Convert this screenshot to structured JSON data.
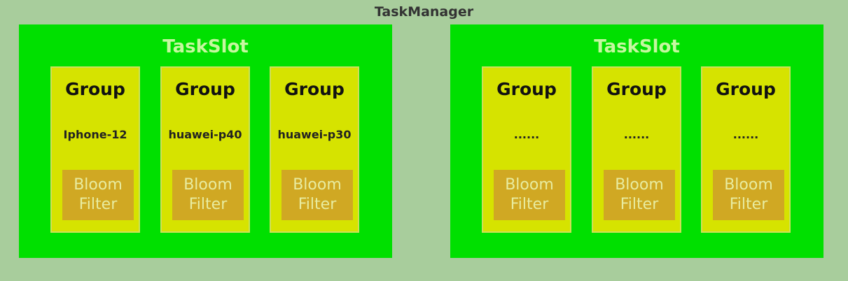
{
  "task_manager": {
    "title": "TaskManager"
  },
  "slots": [
    {
      "title": "TaskSlot",
      "groups": [
        {
          "title": "Group",
          "item": "Iphone-12",
          "filter": "Bloom\nFilter"
        },
        {
          "title": "Group",
          "item": "huawei-p40",
          "filter": "Bloom\nFilter"
        },
        {
          "title": "Group",
          "item": "huawei-p30",
          "filter": "Bloom\nFilter"
        }
      ]
    },
    {
      "title": "TaskSlot",
      "groups": [
        {
          "title": "Group",
          "item": "......",
          "filter": "Bloom\nFilter"
        },
        {
          "title": "Group",
          "item": "......",
          "filter": "Bloom\nFilter"
        },
        {
          "title": "Group",
          "item": "......",
          "filter": "Bloom\nFilter"
        }
      ]
    }
  ],
  "colors": {
    "background": "#a8cd9c",
    "task_slot": "#00e000",
    "group": "#d6e300",
    "bloom_filter": "#d0a823"
  }
}
